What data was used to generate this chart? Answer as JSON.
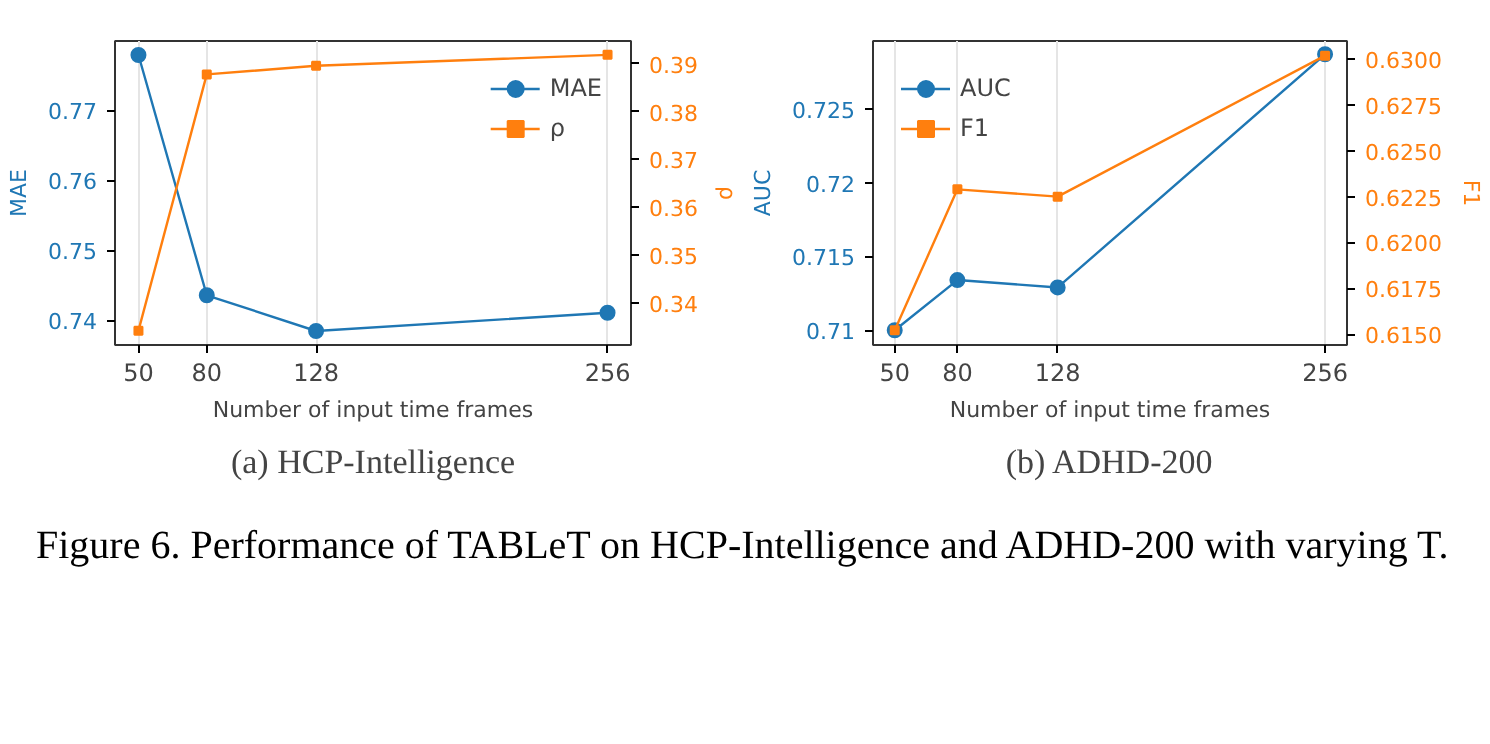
{
  "chart_data": [
    {
      "type": "line",
      "title": "(a) HCP-Intelligence",
      "xlabel": "Number of input time frames",
      "ylabel": "MAE",
      "y2label": "ρ",
      "x": [
        50,
        80,
        128,
        256
      ],
      "xlim": [
        39.7,
        266.3
      ],
      "xticks": [
        50,
        80,
        128,
        256
      ],
      "ylim": [
        0.7365,
        0.7799
      ],
      "yticks": [
        0.74,
        0.75,
        0.76,
        0.77
      ],
      "y2lim": [
        0.3311,
        0.3948
      ],
      "y2ticks": [
        0.34,
        0.35,
        0.36,
        0.37,
        0.38,
        0.39
      ],
      "grid": "x",
      "legend": "top right",
      "annotations": [
        "Figure 6.   Performance of TABLeT on HCP-Intelligence and ADHD-200 with varying T."
      ],
      "series": [
        {
          "name": "MAE",
          "color": "#1f77b4",
          "marker": "circle",
          "axis": "y",
          "values": [
            0.7779,
            0.7436,
            0.7385,
            0.7411
          ]
        },
        {
          "name": "ρ",
          "color": "#ff7f0e",
          "marker": "square",
          "axis": "y2",
          "values": [
            0.3341,
            0.3878,
            0.3896,
            0.3919
          ]
        }
      ]
    },
    {
      "type": "line",
      "title": "(b) ADHD-200",
      "xlabel": "Number of input time frames",
      "ylabel": "AUC",
      "y2label": "F1",
      "x": [
        50,
        80,
        128,
        256
      ],
      "xlim": [
        39.6,
        266.5
      ],
      "xticks": [
        50,
        80,
        128,
        256
      ],
      "ylim": [
        0.709,
        0.7296
      ],
      "yticks": [
        0.71,
        0.715,
        0.72,
        0.725
      ],
      "y2lim": [
        0.6144,
        0.631
      ],
      "y2ticks": [
        {
          "value": 0.615,
          "label": "0.6150"
        },
        {
          "value": 0.6175,
          "label": "0.6175"
        },
        {
          "value": 0.62,
          "label": "0.6200"
        },
        {
          "value": 0.6225,
          "label": "0.6225"
        },
        {
          "value": 0.625,
          "label": "0.6250"
        },
        {
          "value": 0.6275,
          "label": "0.6275"
        },
        {
          "value": 0.63,
          "label": "0.6300"
        }
      ],
      "grid": "x",
      "legend": "top left",
      "series": [
        {
          "name": "AUC",
          "color": "#1f77b4",
          "marker": "circle",
          "axis": "y",
          "values": [
            0.71,
            0.7134,
            0.7129,
            0.7287
          ]
        },
        {
          "name": "F1",
          "color": "#ff7f0e",
          "marker": "square",
          "axis": "y2",
          "values": [
            0.6152,
            0.6229,
            0.6225,
            0.6302
          ]
        }
      ]
    }
  ]
}
